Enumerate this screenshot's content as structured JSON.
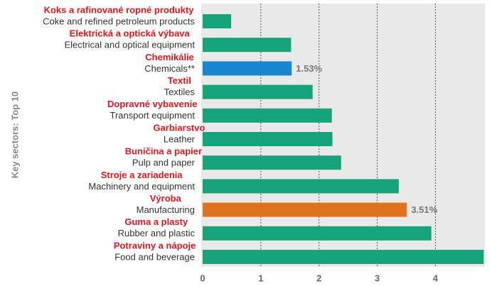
{
  "chart_data": {
    "type": "bar",
    "orientation": "horizontal",
    "y_label": "Key sectors: Top 10",
    "categories": [
      "Coke and refined petroleum products",
      "Electrical and optical equipment",
      "Chemicals**",
      "Textiles",
      "Transport equipment",
      "Leather",
      "Pulp and paper",
      "Machinery and equipment",
      "Manufacturing",
      "Rubber and plastic",
      "Food and beverage"
    ],
    "category_translations": [
      "Koks a rafinované ropné produkty",
      "Elektrická a optická výbava",
      "Chemikálie",
      "Textil",
      "Dopravné vybavenie",
      "Garbiarstvo",
      "Buničina a papier",
      "Stroje a zariadenia",
      "Výroba",
      "Guma a plasty",
      "Potraviny a nápoje"
    ],
    "values": [
      0.49,
      1.52,
      1.53,
      1.89,
      2.22,
      2.23,
      2.38,
      3.37,
      3.51,
      3.93,
      4.83
    ],
    "value_labels": [
      null,
      null,
      "1.53%",
      null,
      null,
      null,
      null,
      null,
      "3.51%",
      null,
      null
    ],
    "colors": [
      "#16a37b",
      "#16a37b",
      "#1a86d2",
      "#16a37b",
      "#16a37b",
      "#16a37b",
      "#16a37b",
      "#16a37b",
      "#e1731f",
      "#16a37b",
      "#16a37b"
    ],
    "xlim": [
      0,
      4.85
    ],
    "xticks": [
      0,
      1,
      2,
      3,
      4
    ],
    "grid": true
  }
}
